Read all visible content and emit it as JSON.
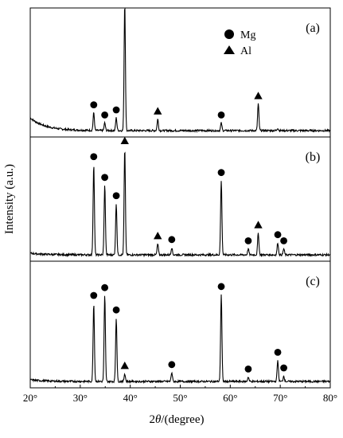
{
  "chart_data": {
    "type": "line",
    "xlabel_prefix": "2",
    "xlabel_symbol": "θ",
    "xlabel_suffix": "/(degree)",
    "ylabel": "Intensity (a.u.)",
    "xlim": [
      20,
      80
    ],
    "x_ticks": [
      "20°",
      "30°",
      "40°",
      "50°",
      "60°",
      "70°",
      "80°"
    ],
    "legend": [
      {
        "marker": "circle",
        "label": "Mg"
      },
      {
        "marker": "triangle",
        "label": "Al"
      }
    ],
    "panels": [
      {
        "label": "(a)",
        "peaks": [
          {
            "x": 32.7,
            "h": 0.14
          },
          {
            "x": 34.9,
            "h": 0.06
          },
          {
            "x": 37.2,
            "h": 0.1
          },
          {
            "x": 38.9,
            "h": 1.0
          },
          {
            "x": 45.5,
            "h": 0.09
          },
          {
            "x": 58.2,
            "h": 0.06
          },
          {
            "x": 65.6,
            "h": 0.21
          },
          {
            "x": 69.5,
            "h": 0.02
          }
        ],
        "markers": [
          {
            "x": 32.7,
            "type": "circle"
          },
          {
            "x": 34.9,
            "type": "circle"
          },
          {
            "x": 37.2,
            "type": "circle"
          },
          {
            "x": 38.9,
            "type": "triangle"
          },
          {
            "x": 45.5,
            "type": "triangle"
          },
          {
            "x": 58.2,
            "type": "circle"
          },
          {
            "x": 65.6,
            "type": "triangle"
          }
        ]
      },
      {
        "label": "(b)",
        "peaks": [
          {
            "x": 32.7,
            "h": 0.74
          },
          {
            "x": 34.9,
            "h": 0.57
          },
          {
            "x": 37.2,
            "h": 0.42
          },
          {
            "x": 38.9,
            "h": 0.87
          },
          {
            "x": 45.5,
            "h": 0.09
          },
          {
            "x": 48.3,
            "h": 0.06
          },
          {
            "x": 58.2,
            "h": 0.61
          },
          {
            "x": 63.6,
            "h": 0.05
          },
          {
            "x": 65.6,
            "h": 0.18
          },
          {
            "x": 69.5,
            "h": 0.1
          },
          {
            "x": 70.7,
            "h": 0.05
          }
        ],
        "markers": [
          {
            "x": 32.7,
            "type": "circle"
          },
          {
            "x": 34.9,
            "type": "circle"
          },
          {
            "x": 37.2,
            "type": "circle"
          },
          {
            "x": 38.9,
            "type": "triangle"
          },
          {
            "x": 45.5,
            "type": "triangle"
          },
          {
            "x": 48.3,
            "type": "circle"
          },
          {
            "x": 58.2,
            "type": "circle"
          },
          {
            "x": 63.6,
            "type": "circle"
          },
          {
            "x": 65.6,
            "type": "triangle"
          },
          {
            "x": 69.5,
            "type": "circle"
          },
          {
            "x": 70.7,
            "type": "circle"
          }
        ]
      },
      {
        "label": "(c)",
        "peaks": [
          {
            "x": 32.7,
            "h": 0.7
          },
          {
            "x": 34.9,
            "h": 0.77
          },
          {
            "x": 37.2,
            "h": 0.57
          },
          {
            "x": 38.9,
            "h": 0.07
          },
          {
            "x": 48.3,
            "h": 0.08
          },
          {
            "x": 58.2,
            "h": 0.78
          },
          {
            "x": 63.6,
            "h": 0.04
          },
          {
            "x": 69.5,
            "h": 0.19
          },
          {
            "x": 70.7,
            "h": 0.05
          }
        ],
        "markers": [
          {
            "x": 32.7,
            "type": "circle"
          },
          {
            "x": 34.9,
            "type": "circle"
          },
          {
            "x": 37.2,
            "type": "circle"
          },
          {
            "x": 38.9,
            "type": "triangle"
          },
          {
            "x": 48.3,
            "type": "circle"
          },
          {
            "x": 58.2,
            "type": "circle"
          },
          {
            "x": 63.6,
            "type": "circle"
          },
          {
            "x": 69.5,
            "type": "circle"
          },
          {
            "x": 70.7,
            "type": "circle"
          }
        ]
      }
    ]
  }
}
